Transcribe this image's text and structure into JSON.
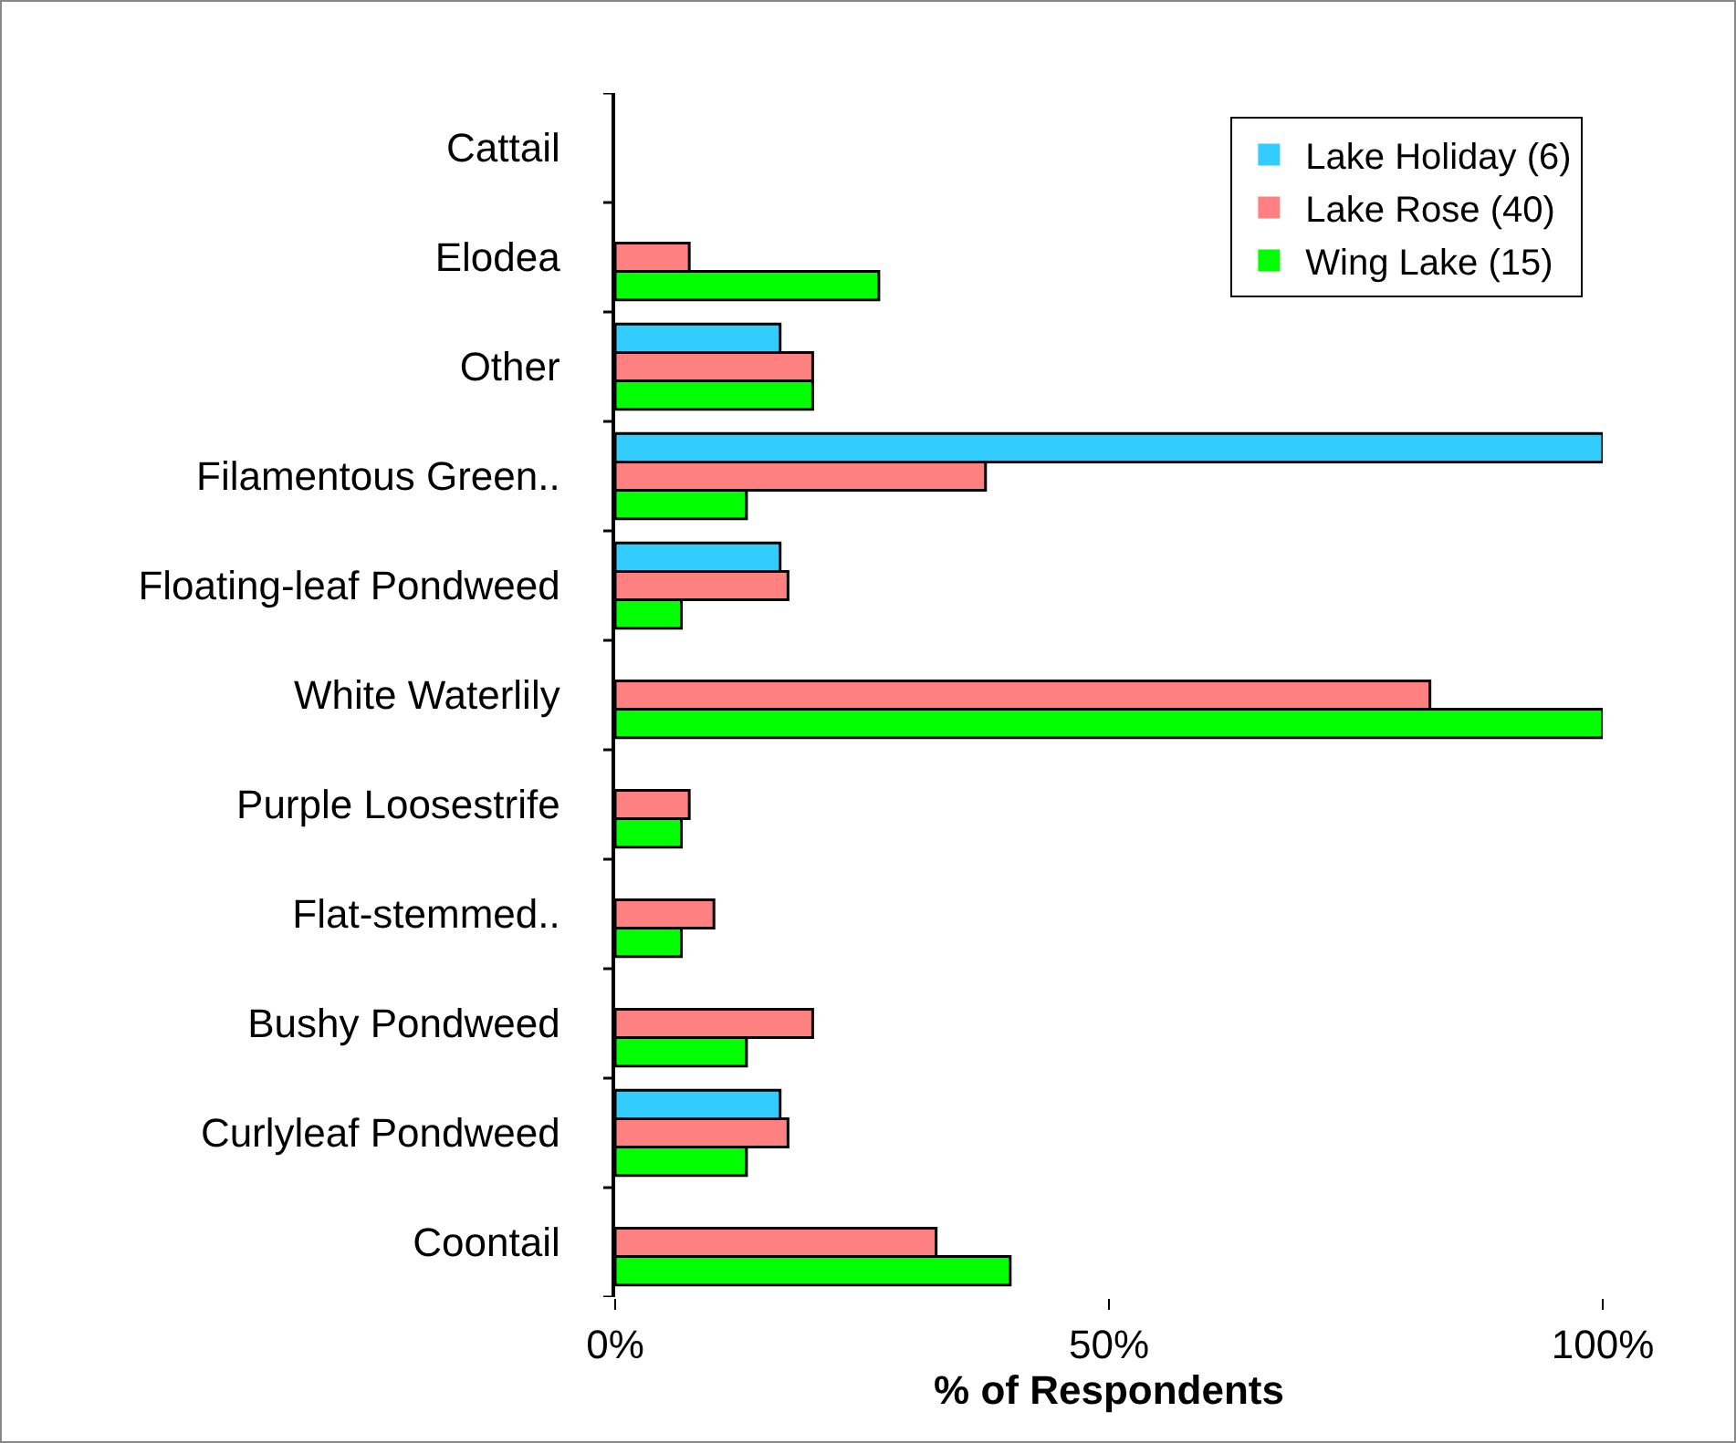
{
  "chart_data": {
    "type": "bar",
    "orientation": "horizontal",
    "xlabel": "% of Respondents",
    "categories": [
      "Cattail",
      "Elodea",
      "Other",
      "Filamentous Green..",
      "Floating-leaf Pondweed",
      "White Waterlily",
      "Purple Loosestrife",
      "Flat-stemmed..",
      "Bushy Pondweed",
      "Curlyleaf Pondweed",
      "Coontail"
    ],
    "series": [
      {
        "name": "Lake Holiday (6)",
        "color": "#33ccff",
        "values": [
          0,
          0,
          16.7,
          100,
          16.7,
          0,
          0,
          0,
          0,
          16.7,
          0
        ]
      },
      {
        "name": "Lake Rose (40)",
        "color": "#ff8080",
        "values": [
          0,
          7.5,
          20,
          37.5,
          17.5,
          82.5,
          7.5,
          10,
          20,
          17.5,
          32.5
        ]
      },
      {
        "name": "Wing Lake (15)",
        "color": "#00ff00",
        "values": [
          0,
          26.7,
          20,
          13.3,
          6.7,
          100,
          6.7,
          6.7,
          13.3,
          13.3,
          40
        ]
      }
    ],
    "xlim": [
      0,
      100
    ],
    "xticks": [
      {
        "value": 0,
        "label": "0%"
      },
      {
        "value": 50,
        "label": "50%"
      },
      {
        "value": 100,
        "label": "100%"
      }
    ],
    "grid": false,
    "legend": "top right"
  }
}
